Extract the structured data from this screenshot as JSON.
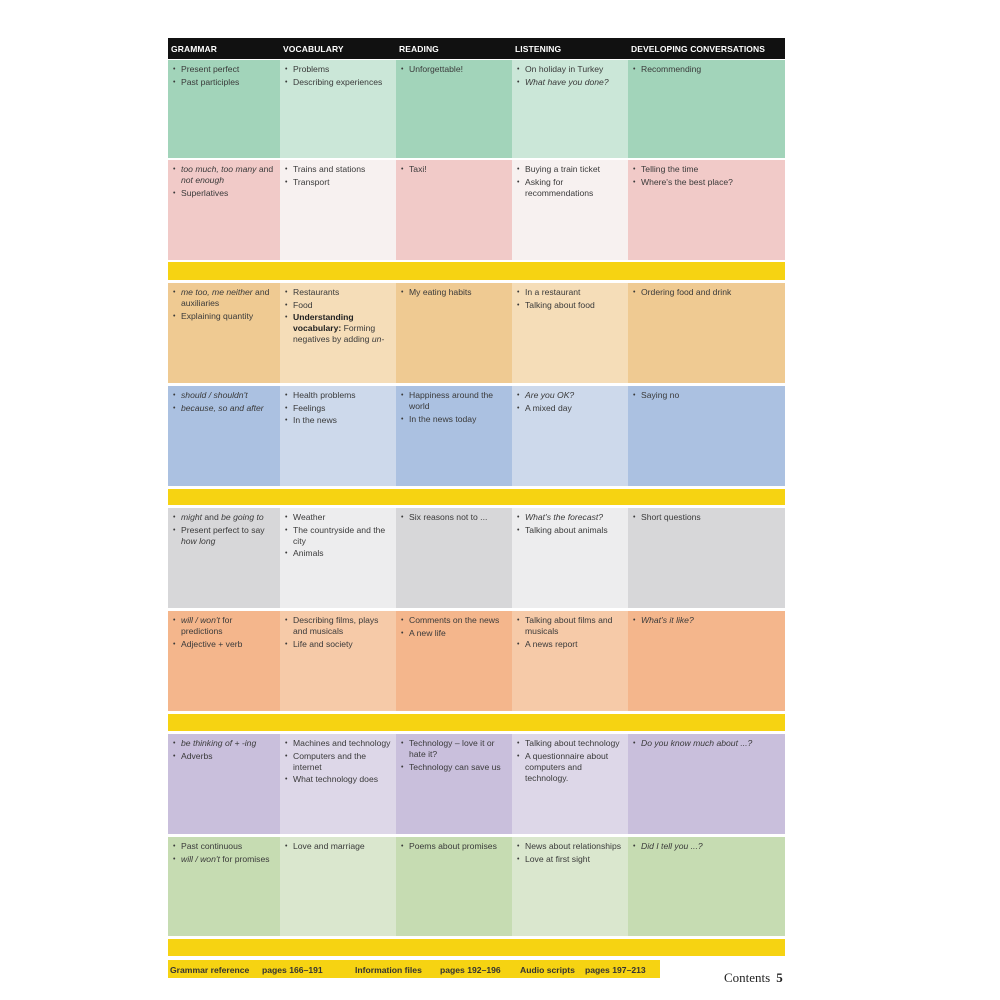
{
  "header": [
    "GRAMMAR",
    "VOCABULARY",
    "READING",
    "LISTENING",
    "DEVELOPING CONVERSATIONS"
  ],
  "colors": {
    "band": "#f6d312",
    "header": "#111111"
  },
  "rows": [
    {
      "dark": "#a2d4ba",
      "light": "#cbe7d8",
      "cells": [
        [
          [
            {
              "t": "Present perfect"
            }
          ],
          [
            {
              "t": "Past participles"
            }
          ]
        ],
        [
          [
            {
              "t": "Problems"
            }
          ],
          [
            {
              "t": "Describing experiences"
            }
          ]
        ],
        [
          [
            {
              "t": "Unforgettable!"
            }
          ]
        ],
        [
          [
            {
              "t": "On holiday in Turkey"
            }
          ],
          [
            {
              "t": "What have you done?",
              "i": true
            }
          ]
        ],
        [
          [
            {
              "t": "Recommending"
            }
          ]
        ]
      ]
    },
    {
      "dark": "#f1cac8",
      "light": "#f7f1f0",
      "cells": [
        [
          [
            {
              "t": "too much, too many",
              "i": true
            },
            {
              "t": " and "
            },
            {
              "t": "not enough",
              "i": true
            }
          ],
          [
            {
              "t": "Superlatives"
            }
          ]
        ],
        [
          [
            {
              "t": "Trains and stations"
            }
          ],
          [
            {
              "t": "Transport"
            }
          ]
        ],
        [
          [
            {
              "t": "Taxi!"
            }
          ]
        ],
        [
          [
            {
              "t": "Buying a train ticket"
            }
          ],
          [
            {
              "t": "Asking for recommendations"
            }
          ]
        ],
        [
          [
            {
              "t": "Telling the time"
            }
          ],
          [
            {
              "t": "Where's the best place?"
            }
          ]
        ]
      ]
    },
    {
      "dark": "#efca92",
      "light": "#f5ddb8",
      "cells": [
        [
          [
            {
              "t": "me too, me neither",
              "i": true
            },
            {
              "t": " and auxiliaries"
            }
          ],
          [
            {
              "t": "Explaining quantity"
            }
          ]
        ],
        [
          [
            {
              "t": "Restaurants"
            }
          ],
          [
            {
              "t": "Food"
            }
          ],
          [
            {
              "t": "Understanding vocabulary:",
              "b": true
            },
            {
              "t": " Forming negatives by adding "
            },
            {
              "t": "un-",
              "i": true
            }
          ]
        ],
        [
          [
            {
              "t": "My eating habits"
            }
          ]
        ],
        [
          [
            {
              "t": "In a restaurant"
            }
          ],
          [
            {
              "t": "Talking about food"
            }
          ]
        ],
        [
          [
            {
              "t": "Ordering food and drink"
            }
          ]
        ]
      ]
    },
    {
      "dark": "#abc1e1",
      "light": "#cdd9eb",
      "cells": [
        [
          [
            {
              "t": "should / shouldn't",
              "i": true
            }
          ],
          [
            {
              "t": "because, so and after",
              "i": true
            }
          ]
        ],
        [
          [
            {
              "t": "Health problems"
            }
          ],
          [
            {
              "t": "Feelings"
            }
          ],
          [
            {
              "t": "In the news"
            }
          ]
        ],
        [
          [
            {
              "t": "Happiness around the world"
            }
          ],
          [
            {
              "t": "In the news today"
            }
          ]
        ],
        [
          [
            {
              "t": "Are you OK?",
              "i": true
            }
          ],
          [
            {
              "t": "A mixed day"
            }
          ]
        ],
        [
          [
            {
              "t": "Saying no"
            }
          ]
        ]
      ]
    },
    {
      "dark": "#d7d7d9",
      "light": "#ededee",
      "cells": [
        [
          [
            {
              "t": "might",
              "i": true
            },
            {
              "t": " and "
            },
            {
              "t": "be going to",
              "i": true
            }
          ],
          [
            {
              "t": "Present perfect to say "
            },
            {
              "t": "how long",
              "i": true
            }
          ]
        ],
        [
          [
            {
              "t": "Weather"
            }
          ],
          [
            {
              "t": "The countryside and the city"
            }
          ],
          [
            {
              "t": "Animals"
            }
          ]
        ],
        [
          [
            {
              "t": "Six reasons not to ..."
            }
          ]
        ],
        [
          [
            {
              "t": "What's the forecast?",
              "i": true
            }
          ],
          [
            {
              "t": "Talking about animals"
            }
          ]
        ],
        [
          [
            {
              "t": "Short questions"
            }
          ]
        ]
      ]
    },
    {
      "dark": "#f4b68c",
      "light": "#f6caa8",
      "cells": [
        [
          [
            {
              "t": "will / won't",
              "i": true
            },
            {
              "t": " for predictions"
            }
          ],
          [
            {
              "t": "Adjective + verb"
            }
          ]
        ],
        [
          [
            {
              "t": "Describing films, plays and musicals"
            }
          ],
          [
            {
              "t": "Life and society"
            }
          ]
        ],
        [
          [
            {
              "t": "Comments on the news"
            }
          ],
          [
            {
              "t": "A new life"
            }
          ]
        ],
        [
          [
            {
              "t": "Talking about films and musicals"
            }
          ],
          [
            {
              "t": "A news report"
            }
          ]
        ],
        [
          [
            {
              "t": "What's it like?",
              "i": true
            }
          ]
        ]
      ]
    },
    {
      "dark": "#c9bfdc",
      "light": "#ddd7e8",
      "cells": [
        [
          [
            {
              "t": "be thinking of + -ing",
              "i": true
            }
          ],
          [
            {
              "t": "Adverbs"
            }
          ]
        ],
        [
          [
            {
              "t": "Machines and technology"
            }
          ],
          [
            {
              "t": "Computers and the internet"
            }
          ],
          [
            {
              "t": "What technology does"
            }
          ]
        ],
        [
          [
            {
              "t": "Technology – love it or hate it?"
            }
          ],
          [
            {
              "t": "Technology can save us"
            }
          ]
        ],
        [
          [
            {
              "t": "Talking about technology"
            }
          ],
          [
            {
              "t": "A questionnaire about computers and technology."
            }
          ]
        ],
        [
          [
            {
              "t": "Do you know much about ...?",
              "i": true
            }
          ]
        ]
      ]
    },
    {
      "dark": "#c6dcb2",
      "light": "#dae7ce",
      "cells": [
        [
          [
            {
              "t": "Past continuous"
            }
          ],
          [
            {
              "t": "will / won't",
              "i": true
            },
            {
              "t": " for promises"
            }
          ]
        ],
        [
          [
            {
              "t": "Love and marriage"
            }
          ]
        ],
        [
          [
            {
              "t": "Poems about promises"
            }
          ]
        ],
        [
          [
            {
              "t": "News about relationships"
            }
          ],
          [
            {
              "t": "Love at first sight"
            }
          ]
        ],
        [
          [
            {
              "t": "Did I tell you ...?",
              "i": true
            }
          ]
        ]
      ]
    }
  ],
  "footer": {
    "grammar_label": "Grammar reference",
    "grammar_pages": "pages 166–191",
    "info_label": "Information files",
    "info_pages": "pages 192–196",
    "audio_label": "Audio scripts",
    "audio_pages": "pages 197–213"
  },
  "page_label": "Contents",
  "page_number": "5"
}
